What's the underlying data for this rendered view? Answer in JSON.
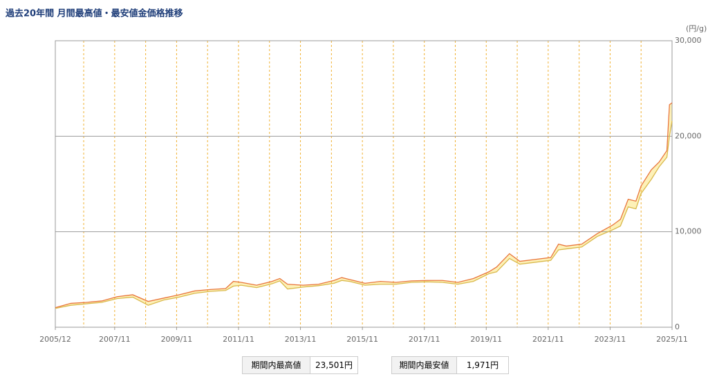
{
  "chart_data": {
    "type": "band-line",
    "title": "過去20年間 月間最高値・最安値金価格推移",
    "y_unit": "(円/g)",
    "xlim": [
      "2005/12",
      "2025/11"
    ],
    "xticks": [
      "2005/12",
      "2007/11",
      "2009/11",
      "2011/11",
      "2013/11",
      "2015/11",
      "2017/11",
      "2019/11",
      "2021/11",
      "2023/11",
      "2025/11"
    ],
    "xgrid": [
      "2006/11",
      "2007/11",
      "2008/11",
      "2009/11",
      "2010/11",
      "2011/11",
      "2012/11",
      "2013/11",
      "2014/11",
      "2015/11",
      "2016/11",
      "2017/11",
      "2018/11",
      "2019/11",
      "2020/11",
      "2021/11",
      "2022/11",
      "2023/11",
      "2024/11"
    ],
    "ylim": [
      0,
      30000
    ],
    "yticks": [
      0,
      {
        "value": 10000,
        "label": "10,000"
      },
      {
        "value": 20000,
        "label": "20,000"
      },
      {
        "value": 30000,
        "label": "30,000"
      }
    ],
    "grid": true,
    "fill_color": "#fdf1b8",
    "x": [
      "2005/12",
      "2006/06",
      "2006/12",
      "2007/06",
      "2007/12",
      "2008/06",
      "2008/12",
      "2009/06",
      "2009/12",
      "2010/06",
      "2010/12",
      "2011/06",
      "2011/09",
      "2011/12",
      "2012/06",
      "2012/12",
      "2013/03",
      "2013/06",
      "2013/12",
      "2014/06",
      "2014/12",
      "2015/03",
      "2015/06",
      "2015/12",
      "2016/06",
      "2016/12",
      "2017/06",
      "2017/12",
      "2018/06",
      "2018/12",
      "2019/06",
      "2019/12",
      "2020/03",
      "2020/08",
      "2020/12",
      "2021/06",
      "2021/12",
      "2022/03",
      "2022/06",
      "2022/12",
      "2023/06",
      "2023/12",
      "2024/03",
      "2024/06",
      "2024/09",
      "2024/11",
      "2025/03",
      "2025/06",
      "2025/09",
      "2025/10",
      "2025/11"
    ],
    "series": [
      {
        "color": "#e8743b",
        "values": [
          2050,
          2500,
          2600,
          2750,
          3200,
          3400,
          2700,
          3050,
          3400,
          3800,
          3950,
          4050,
          4800,
          4700,
          4400,
          4800,
          5100,
          4500,
          4400,
          4500,
          4900,
          5200,
          5000,
          4600,
          4800,
          4700,
          4850,
          4900,
          4900,
          4700,
          5100,
          5800,
          6300,
          7700,
          6900,
          7100,
          7300,
          8700,
          8500,
          8700,
          9800,
          10700,
          11300,
          13400,
          13200,
          14800,
          16500,
          17300,
          18500,
          23300,
          23501
        ]
      },
      {
        "color": "#d9b84a",
        "values": [
          1971,
          2300,
          2450,
          2600,
          3000,
          3150,
          2300,
          2850,
          3150,
          3550,
          3750,
          3850,
          4300,
          4400,
          4150,
          4550,
          4850,
          4000,
          4200,
          4350,
          4600,
          4900,
          4800,
          4400,
          4500,
          4500,
          4700,
          4750,
          4700,
          4500,
          4800,
          5600,
          5800,
          7200,
          6600,
          6800,
          7000,
          8100,
          8200,
          8400,
          9500,
          10200,
          10600,
          12600,
          12400,
          14000,
          15500,
          16800,
          17800,
          20000,
          21600
        ]
      }
    ]
  },
  "stats": [
    {
      "label": "期間内最高値",
      "value": "23,501円"
    },
    {
      "label": "期間内最安値",
      "value": "1,971円"
    }
  ]
}
